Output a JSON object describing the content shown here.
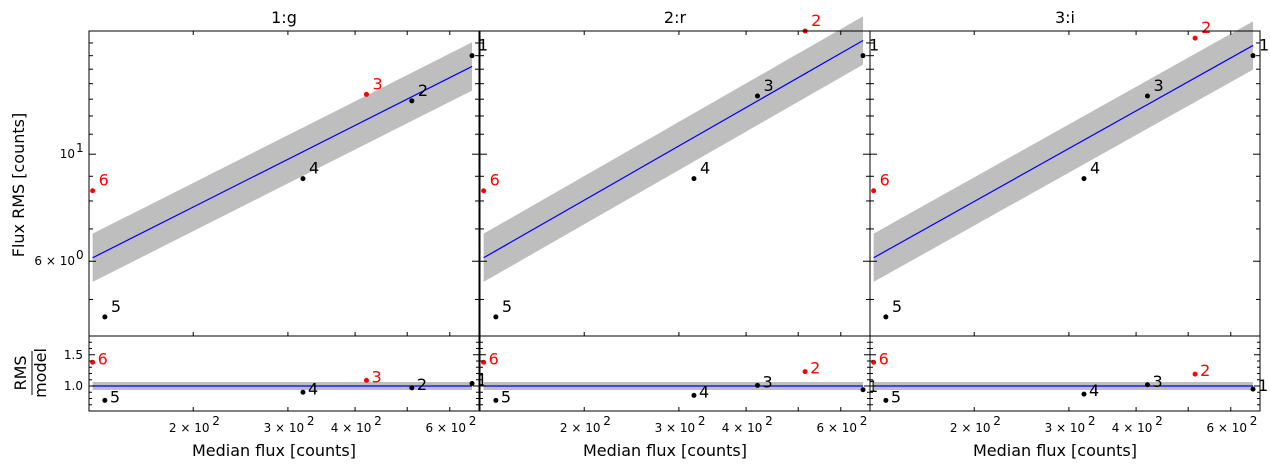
{
  "chart_data": {
    "type": "scatter",
    "x_label": "Median flux [counts]",
    "y_label_top": "Flux RMS [counts]",
    "y_label_bottom_num": "RMS",
    "y_label_bottom_den": "model",
    "x_scale": "log",
    "y_scale_top": "log",
    "xlim": [
      128,
      680
    ],
    "ylim_top": [
      4.2,
      18.0
    ],
    "ylim_bottom": [
      0.6,
      1.8
    ],
    "x_ticks": [
      {
        "value": 200,
        "base": "2 × 10",
        "exp": "2"
      },
      {
        "value": 300,
        "base": "3 × 10",
        "exp": "2"
      },
      {
        "value": 400,
        "base": "4 × 10",
        "exp": "2"
      },
      {
        "value": 600,
        "base": "6 × 10",
        "exp": "2"
      }
    ],
    "y_ticks_top": [
      {
        "value": 10,
        "base": "10",
        "exp": "1"
      },
      {
        "value": 6,
        "base": "6 × 10",
        "exp": "0"
      }
    ],
    "y_ticks_bottom": [
      {
        "value": 1.0,
        "label": "1.0"
      },
      {
        "value": 1.5,
        "label": "1.5"
      }
    ],
    "colors": {
      "normal": "#000000",
      "outlier": "#ff0000",
      "fit": "#0000ff",
      "band": "#bebebe"
    },
    "panels": [
      {
        "title": "1:g",
        "fit": {
          "x": [
            130,
            660
          ],
          "y": [
            6.1,
            15.2
          ],
          "band_half": 0.05
        },
        "points": [
          {
            "label": "1",
            "x": 660,
            "y": 16.0,
            "ratio": 1.04,
            "outlier": false
          },
          {
            "label": "2",
            "x": 510,
            "y": 12.9,
            "ratio": 0.97,
            "outlier": false
          },
          {
            "label": "3",
            "x": 420,
            "y": 13.3,
            "ratio": 1.09,
            "outlier": true
          },
          {
            "label": "4",
            "x": 320,
            "y": 8.9,
            "ratio": 0.9,
            "outlier": false
          },
          {
            "label": "5",
            "x": 137,
            "y": 4.6,
            "ratio": 0.77,
            "outlier": false
          },
          {
            "label": "6",
            "x": 130,
            "y": 8.4,
            "ratio": 1.38,
            "outlier": true
          }
        ]
      },
      {
        "title": "2:r",
        "fit": {
          "x": [
            130,
            660
          ],
          "y": [
            6.1,
            17.2
          ],
          "band_half": 0.05
        },
        "points": [
          {
            "label": "1",
            "x": 660,
            "y": 16.0,
            "ratio": 0.94,
            "outlier": false
          },
          {
            "label": "2",
            "x": 515,
            "y": 18.0,
            "ratio": 1.23,
            "outlier": true
          },
          {
            "label": "3",
            "x": 420,
            "y": 13.2,
            "ratio": 1.01,
            "outlier": false
          },
          {
            "label": "4",
            "x": 320,
            "y": 8.9,
            "ratio": 0.85,
            "outlier": false
          },
          {
            "label": "5",
            "x": 137,
            "y": 4.6,
            "ratio": 0.77,
            "outlier": false
          },
          {
            "label": "6",
            "x": 130,
            "y": 8.4,
            "ratio": 1.38,
            "outlier": true
          }
        ]
      },
      {
        "title": "3:i",
        "fit": {
          "x": [
            130,
            660
          ],
          "y": [
            6.1,
            16.8
          ],
          "band_half": 0.05
        },
        "points": [
          {
            "label": "1",
            "x": 660,
            "y": 16.0,
            "ratio": 0.95,
            "outlier": false
          },
          {
            "label": "2",
            "x": 515,
            "y": 17.4,
            "ratio": 1.19,
            "outlier": true
          },
          {
            "label": "3",
            "x": 420,
            "y": 13.2,
            "ratio": 1.02,
            "outlier": false
          },
          {
            "label": "4",
            "x": 320,
            "y": 8.9,
            "ratio": 0.87,
            "outlier": false
          },
          {
            "label": "5",
            "x": 137,
            "y": 4.6,
            "ratio": 0.77,
            "outlier": false
          },
          {
            "label": "6",
            "x": 130,
            "y": 8.4,
            "ratio": 1.38,
            "outlier": true
          }
        ]
      }
    ]
  }
}
